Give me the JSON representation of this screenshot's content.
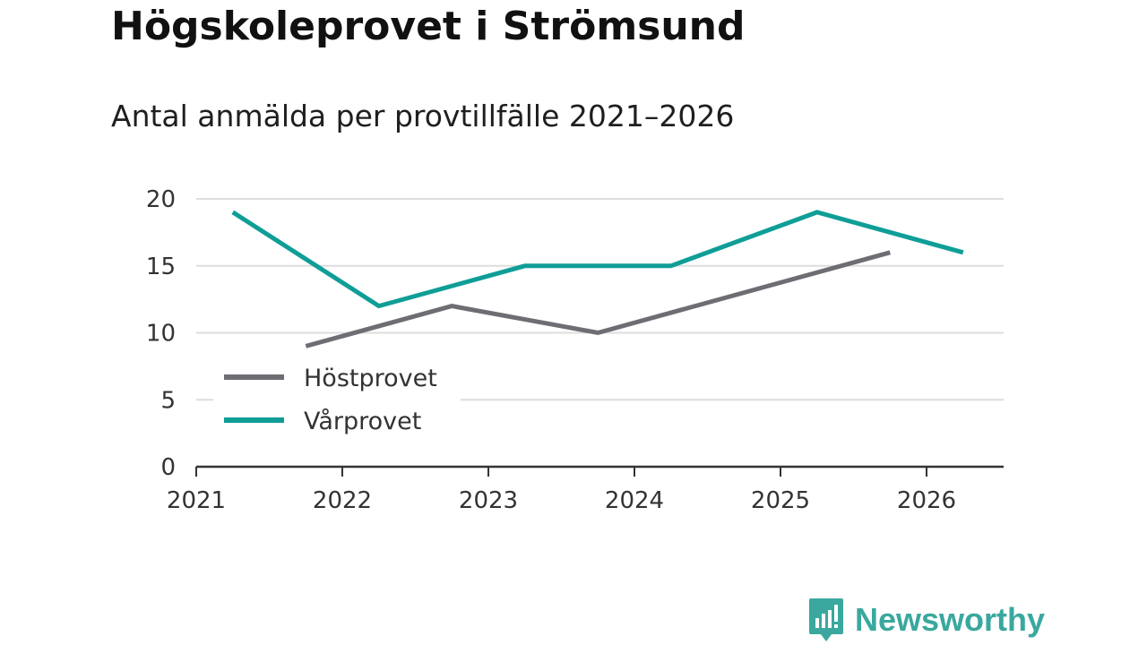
{
  "header": {
    "title": "Högskoleprovet i Strömsund",
    "subtitle": "Antal anmälda per provtillfälle 2021–2026"
  },
  "brand": {
    "name": "Newsworthy",
    "icon": "newsworthy-logo-icon",
    "color": "#3aa89e"
  },
  "chart_data": {
    "type": "line",
    "title": "Högskoleprovet i Strömsund",
    "subtitle": "Antal anmälda per provtillfälle 2021–2026",
    "xlabel": "",
    "ylabel": "",
    "xlim": [
      2021,
      2026.5
    ],
    "ylim": [
      0,
      20
    ],
    "x_ticks": [
      2021,
      2022,
      2023,
      2024,
      2025,
      2026
    ],
    "x_tick_labels": [
      "2021",
      "2022",
      "2023",
      "2024",
      "2025",
      "2026"
    ],
    "y_ticks": [
      0,
      5,
      10,
      15,
      20
    ],
    "y_tick_labels": [
      "0",
      "5",
      "10",
      "15",
      "20"
    ],
    "grid": true,
    "legend_position": "lower-left",
    "series": [
      {
        "name": "Höstprovet",
        "color": "#6f6c74",
        "x": [
          2021.75,
          2022.75,
          2023.75,
          2024.75,
          2025.75
        ],
        "values": [
          9,
          12,
          10,
          13,
          16
        ]
      },
      {
        "name": "Vårprovet",
        "color": "#0f9e97",
        "x": [
          2021.25,
          2022.25,
          2023.25,
          2024.25,
          2025.25,
          2026.25
        ],
        "values": [
          19,
          12,
          15,
          15,
          19,
          16
        ]
      }
    ]
  }
}
